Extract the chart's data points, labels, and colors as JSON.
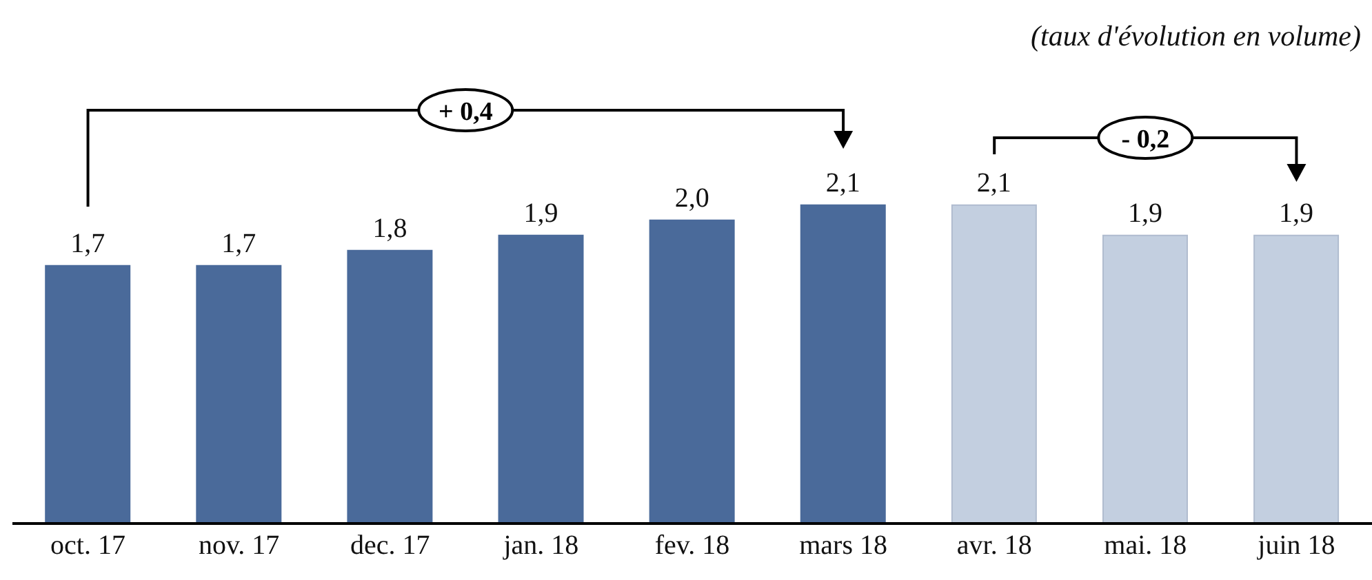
{
  "chart_data": {
    "type": "bar",
    "subtitle": "(taux d'évolution en volume)",
    "categories": [
      "oct. 17",
      "nov. 17",
      "dec. 17",
      "jan. 18",
      "fev. 18",
      "mars 18",
      "avr. 18",
      "mai. 18",
      "juin 18"
    ],
    "values": [
      1.7,
      1.7,
      1.8,
      1.9,
      2.0,
      2.1,
      2.1,
      1.9,
      1.9
    ],
    "value_labels": [
      "1,7",
      "1,7",
      "1,8",
      "1,9",
      "2,0",
      "2,1",
      "2,1",
      "1,9",
      "1,9"
    ],
    "colors": [
      "#4a6a9a",
      "#4a6a9a",
      "#4a6a9a",
      "#4a6a9a",
      "#4a6a9a",
      "#4a6a9a",
      "#c3cfe0",
      "#c3cfe0",
      "#c3cfe0"
    ],
    "tick_labels": "x",
    "grid": false,
    "legend": false,
    "annotations": [
      "+ 0,4",
      "- 0,2"
    ]
  }
}
